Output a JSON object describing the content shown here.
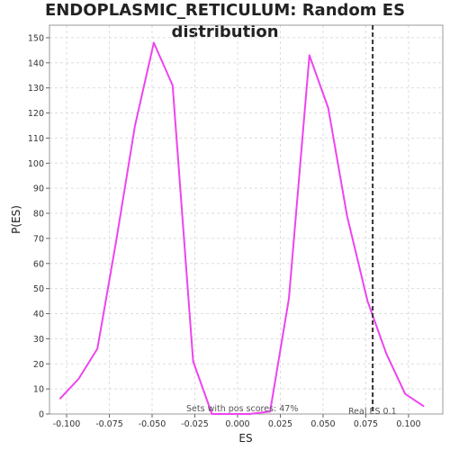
{
  "chart_data": {
    "type": "line",
    "title": "ENDOPLASMIC_RETICULUM: Random ES distribution",
    "xlabel": "ES",
    "ylabel": "P(ES)",
    "xlim": [
      -0.11,
      0.12
    ],
    "ylim": [
      0,
      155
    ],
    "grid": true,
    "x_ticks": [
      -0.1,
      -0.075,
      -0.05,
      -0.025,
      0.0,
      0.025,
      0.05,
      0.075,
      0.1
    ],
    "x_tick_labels": [
      "-0.100",
      "-0.075",
      "-0.050",
      "-0.025",
      "0.000",
      "0.025",
      "0.050",
      "0.075",
      "0.100"
    ],
    "y_ticks": [
      0,
      10,
      20,
      30,
      40,
      50,
      60,
      70,
      80,
      90,
      100,
      110,
      120,
      130,
      140,
      150
    ],
    "y_tick_labels": [
      "0",
      "10",
      "20",
      "30",
      "40",
      "50",
      "60",
      "70",
      "80",
      "90",
      "100",
      "110",
      "120",
      "130",
      "140",
      "150"
    ],
    "series": [
      {
        "color": "#ee44ee",
        "x": [
          -0.104,
          -0.093,
          -0.082,
          -0.071,
          -0.06,
          -0.049,
          -0.038,
          -0.026,
          -0.015,
          -0.004,
          0.007,
          0.019,
          0.03,
          0.042,
          0.053,
          0.064,
          0.076,
          0.087,
          0.098,
          0.109
        ],
        "y": [
          6,
          14,
          26,
          69,
          115,
          148,
          131,
          21,
          0,
          0,
          0,
          1,
          46,
          143,
          122,
          79,
          45,
          24,
          8,
          3
        ]
      }
    ],
    "reference_line": {
      "x": 0.079,
      "label": "Real ES 0.1",
      "style": "dashed",
      "color": "#333333"
    },
    "annotation": "Sets with pos scores: 47%"
  }
}
